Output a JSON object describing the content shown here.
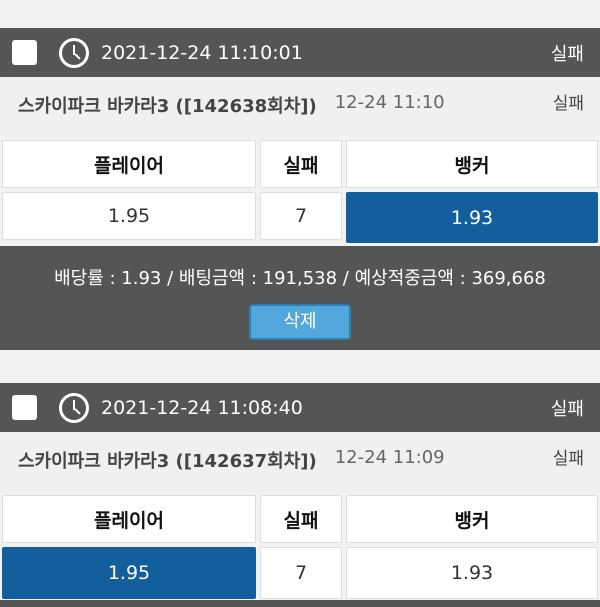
{
  "bets": [
    {
      "datetime": "2021-12-24 11:10:01",
      "status": "실패",
      "game": "스카이파크 바카라3 ([142638회차])",
      "time": "12-24 11:10",
      "result_status": "실패",
      "headers": [
        "플레이어",
        "실패",
        "뱅커"
      ],
      "odds": [
        "1.95",
        "7",
        "1.93"
      ],
      "selected": 2,
      "summary": "배당률 : 1.93 / 배팅금액 : 191,538 / 예상적중금액 : 369,668",
      "delete_label": "삭제"
    },
    {
      "datetime": "2021-12-24 11:08:40",
      "status": "실패",
      "game": "스카이파크 바카라3 ([142637회차])",
      "time": "12-24 11:09",
      "result_status": "실패",
      "headers": [
        "플레이어",
        "실패",
        "뱅커"
      ],
      "odds": [
        "1.95",
        "7",
        "1.93"
      ],
      "selected": 0
    }
  ],
  "colors": {
    "selected": "#135e9c",
    "header": "#555555",
    "button": "#52a8dd"
  }
}
